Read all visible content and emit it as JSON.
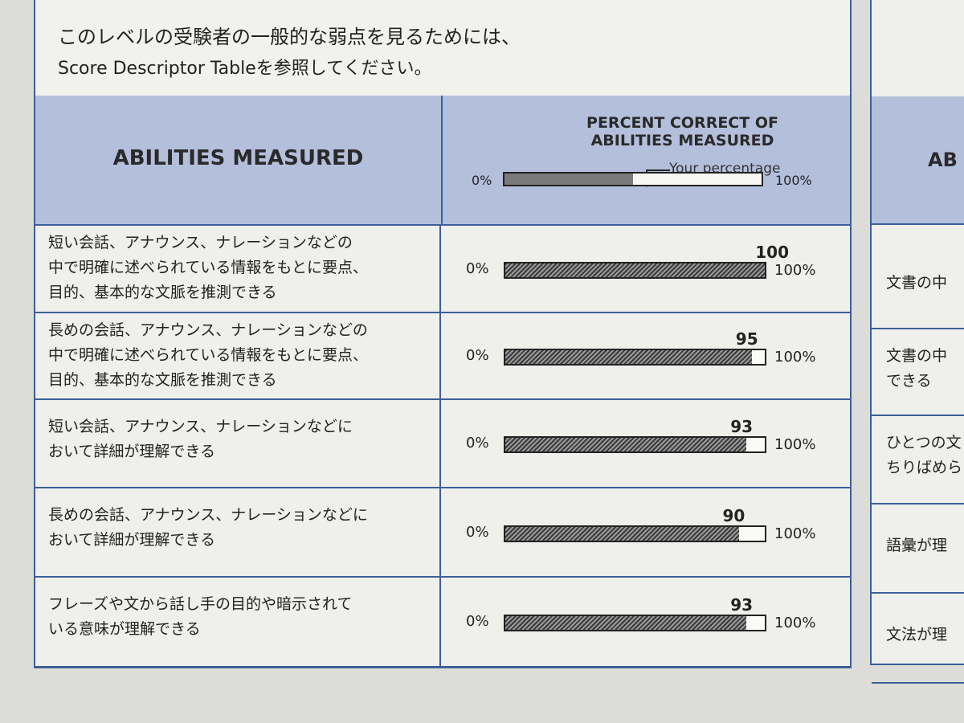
{
  "intro": {
    "line1": "このレベルの受験者の一般的な弱点を見るためには、",
    "line2": "Score Descriptor Tableを参照してください。"
  },
  "header": {
    "left_title": "ABILITIES MEASURED",
    "right_title_line1": "PERCENT CORRECT OF",
    "right_title_line2": "ABILITIES MEASURED",
    "pointer_label": "Your percentage",
    "legend_min": "0%",
    "legend_max": "100%",
    "legend_example_fraction": 0.5
  },
  "rows": [
    {
      "lines": [
        "短い会話、アナウンス、ナレーションなどの",
        "中で明確に述べられている情報をもとに要点、",
        "目的、基本的な文脈を推測できる"
      ],
      "zero": "0%",
      "full": "100%"
    },
    {
      "lines": [
        "長めの会話、アナウンス、ナレーションなどの",
        "中で明確に述べられている情報をもとに要点、",
        "目的、基本的な文脈を推測できる"
      ],
      "zero": "0%",
      "full": "100%"
    },
    {
      "lines": [
        "短い会話、アナウンス、ナレーションなどに",
        "おいて詳細が理解できる"
      ],
      "zero": "0%",
      "full": "100%"
    },
    {
      "lines": [
        "長めの会話、アナウンス、ナレーションなどに",
        "おいて詳細が理解できる"
      ],
      "zero": "0%",
      "full": "100%"
    },
    {
      "lines": [
        "フレーズや文から話し手の目的や暗示されて",
        "いる意味が理解できる"
      ],
      "zero": "0%",
      "full": "100%"
    }
  ],
  "chart_data": {
    "type": "bar",
    "orientation": "horizontal",
    "xlim": [
      0,
      100
    ],
    "categories": [
      "短い会話、アナウンス、ナレーションなどの中で明確に述べられている情報をもとに要点、目的、基本的な文脈を推測できる",
      "長めの会話、アナウンス、ナレーションなどの中で明確に述べられている情報をもとに要点、目的、基本的な文脈を推測できる",
      "短い会話、アナウンス、ナレーションなどにおいて詳細が理解できる",
      "長めの会話、アナウンス、ナレーションなどにおいて詳細が理解できる",
      "フレーズや文から話し手の目的や暗示されている意味が理解できる"
    ],
    "values": [
      100,
      95,
      93,
      90,
      93
    ],
    "value_labels": [
      "100",
      "95",
      "93",
      "90",
      "93"
    ]
  },
  "side_panel": {
    "header": "AB",
    "items": [
      "文書の中",
      "文書の中",
      "できる",
      "ひとつの文",
      "ちりばめら",
      "語彙が理",
      "文法が理"
    ]
  }
}
